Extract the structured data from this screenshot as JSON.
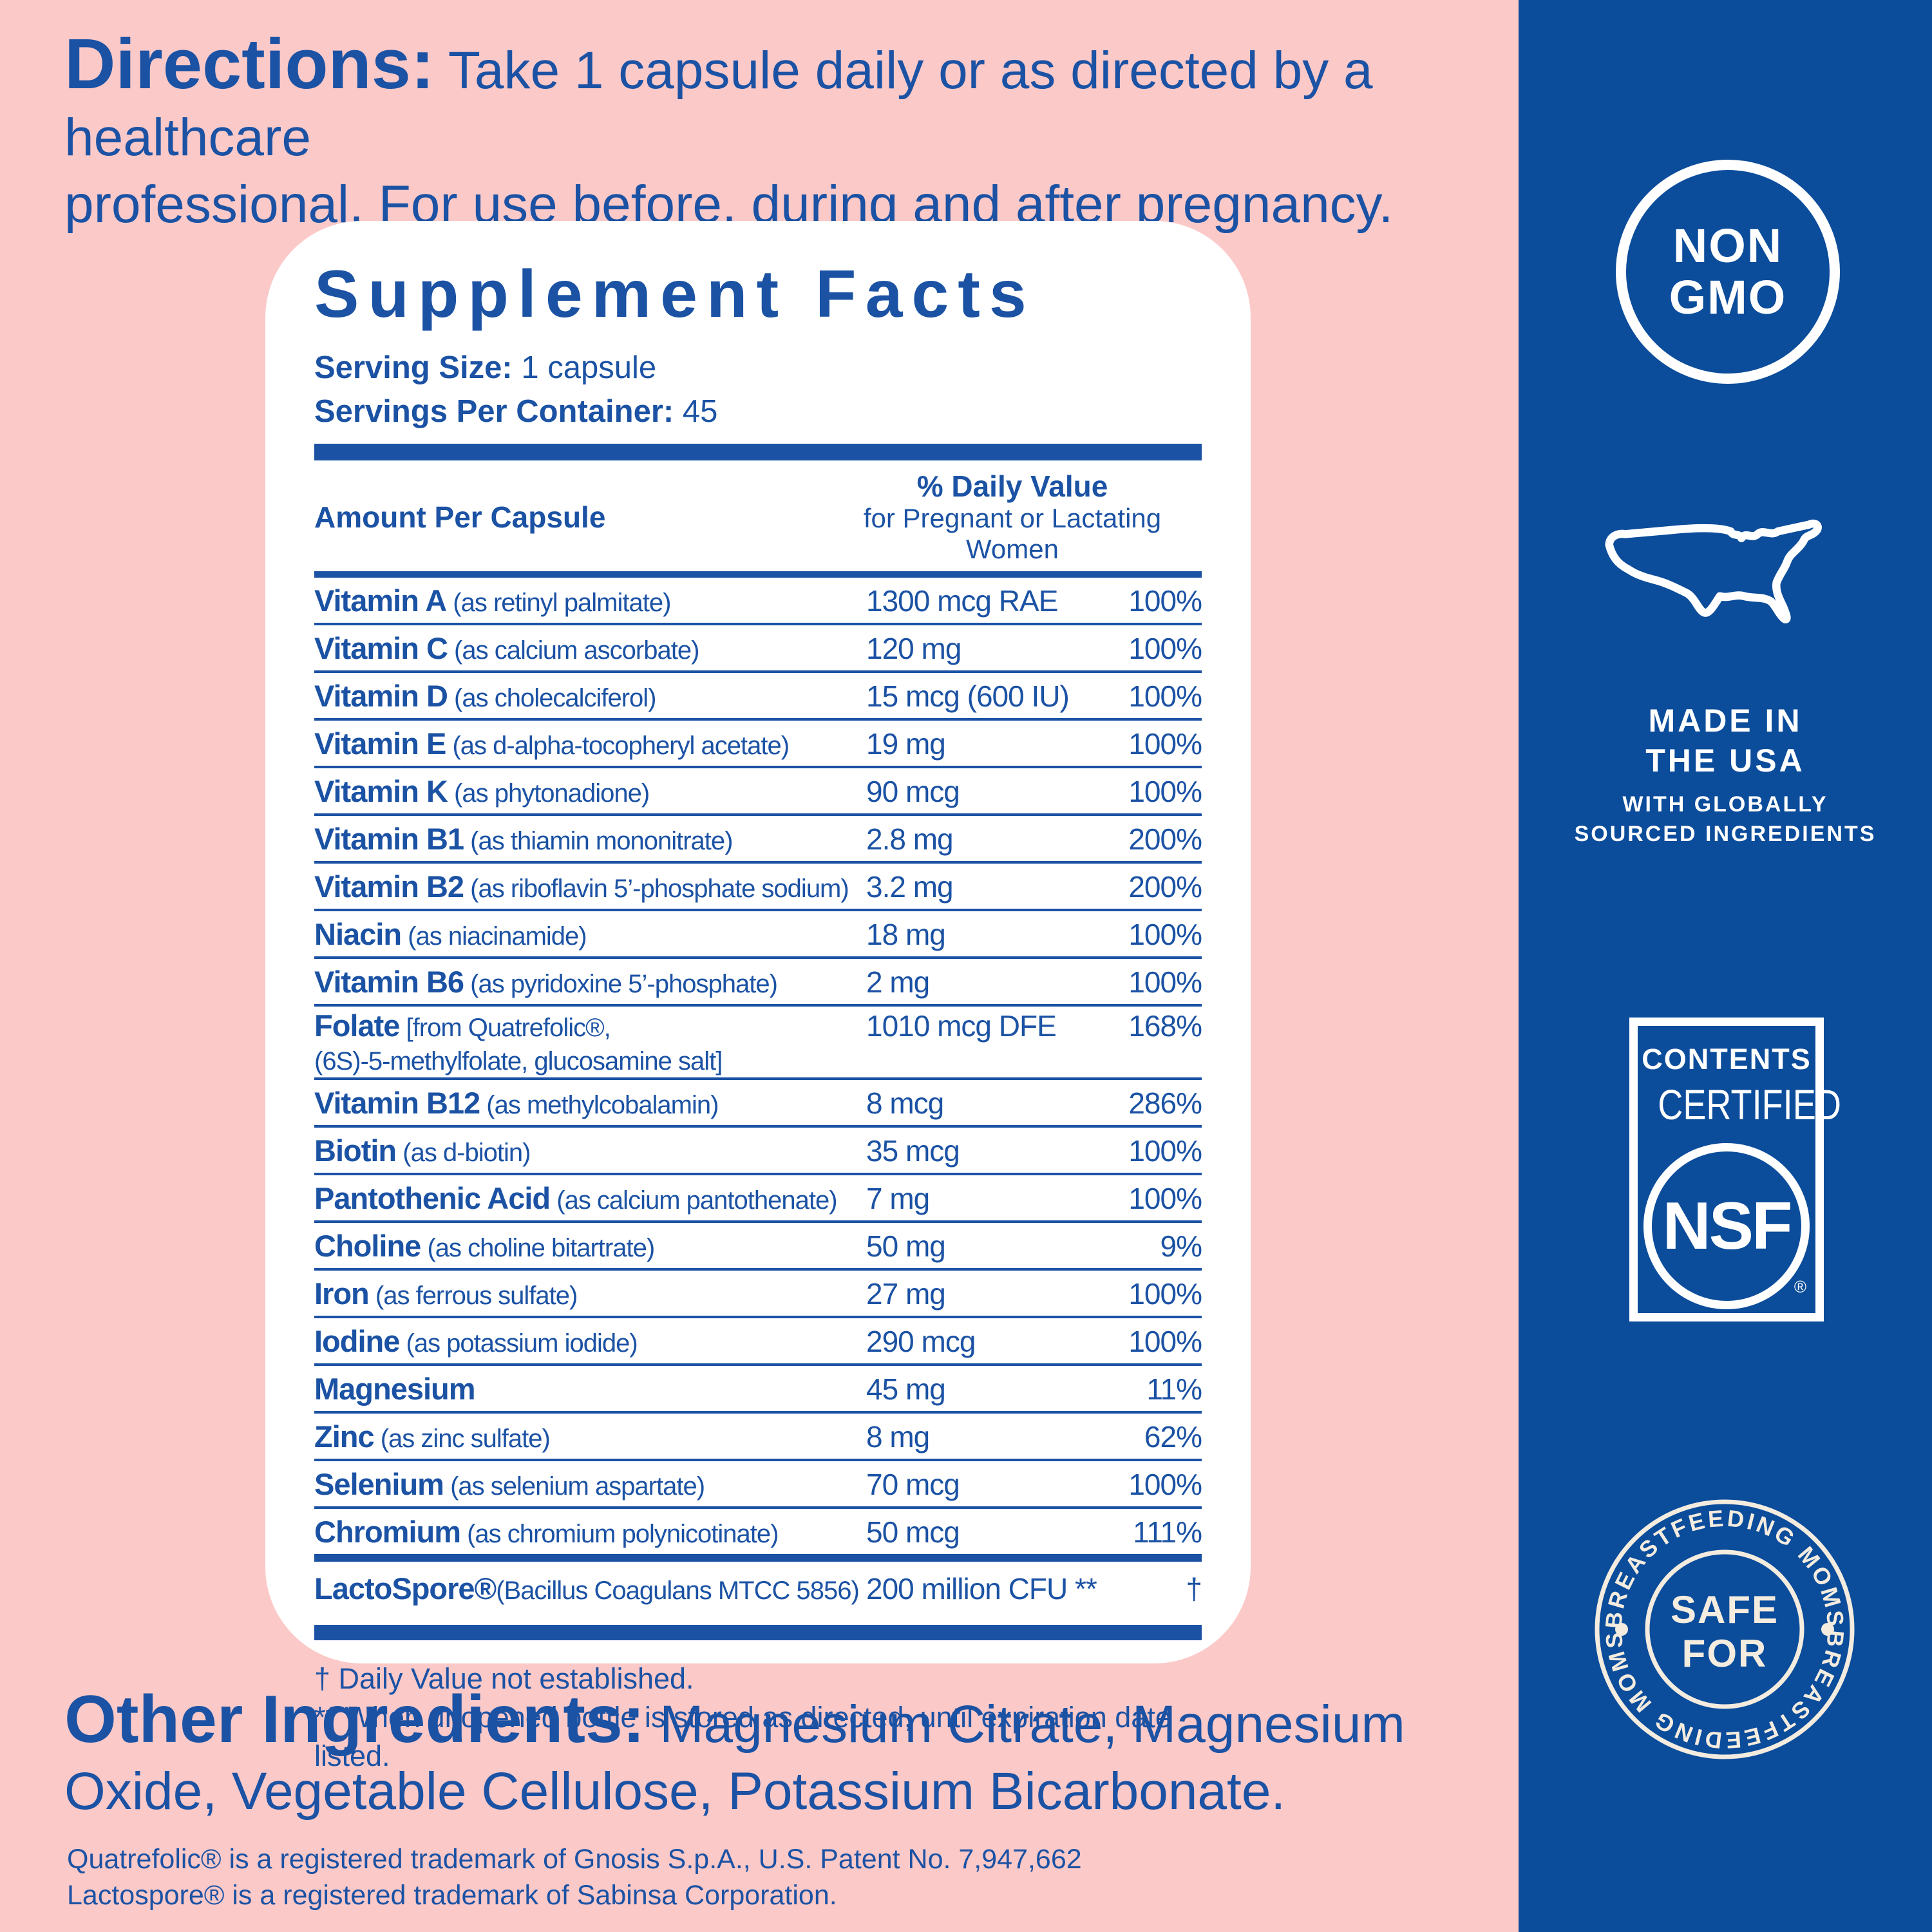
{
  "colors": {
    "pink": "#fbc9c8",
    "blue_sidebar": "#0b4c9b",
    "blue_text": "#1b52a4",
    "cream": "#f4ecdf"
  },
  "directions": {
    "heading": "Directions:",
    "line1": "Take 1 capsule daily or as directed by a healthcare",
    "line2": "professional. For use before, during and after pregnancy."
  },
  "panel": {
    "title": "Supplement Facts",
    "serving_size_label": "Serving Size:",
    "serving_size_value": "1 capsule",
    "servings_label": "Servings Per Container:",
    "servings_value": "45",
    "col_amount": "Amount Per Capsule",
    "col_dv": "% Daily Value",
    "col_dv_sub": "for Pregnant or Lactating Women",
    "rows": [
      {
        "name": "Vitamin A",
        "detail": " (as retinyl palmitate)",
        "amount": "1300 mcg RAE",
        "dv": "100%"
      },
      {
        "name": "Vitamin C",
        "detail": " (as calcium ascorbate)",
        "amount": "120 mg",
        "dv": "100%"
      },
      {
        "name": "Vitamin D",
        "detail": " (as cholecalciferol)",
        "amount": "15 mcg (600 IU)",
        "dv": "100%"
      },
      {
        "name": "Vitamin E",
        "detail": " (as d-alpha-tocopheryl acetate)",
        "amount": "19 mg",
        "dv": "100%"
      },
      {
        "name": "Vitamin K",
        "detail": " (as phytonadione)",
        "amount": "90 mcg",
        "dv": "100%"
      },
      {
        "name": "Vitamin B1",
        "detail": " (as thiamin mononitrate)",
        "amount": "2.8 mg",
        "dv": "200%"
      },
      {
        "name": "Vitamin B2",
        "detail": " (as riboflavin 5’-phosphate sodium)",
        "amount": "3.2 mg",
        "dv": "200%"
      },
      {
        "name": "Niacin",
        "detail": " (as niacinamide)",
        "amount": "18 mg",
        "dv": "100%"
      },
      {
        "name": "Vitamin B6",
        "detail": " (as pyridoxine 5’-phosphate)",
        "amount": "2 mg",
        "dv": "100%"
      },
      {
        "name": "Folate",
        "detail": " [from Quatrefolic®,",
        "detail2": "(6S)-5-methylfolate, glucosamine salt]",
        "amount": "1010 mcg DFE",
        "dv": "168%"
      },
      {
        "name": "Vitamin B12",
        "detail": " (as methylcobalamin)",
        "amount": "8 mcg",
        "dv": "286%"
      },
      {
        "name": "Biotin",
        "detail": " (as d-biotin)",
        "amount": "35 mcg",
        "dv": "100%"
      },
      {
        "name": "Pantothenic Acid",
        "detail": " (as calcium pantothenate)",
        "amount": "7 mg",
        "dv": "100%"
      },
      {
        "name": "Choline",
        "detail": " (as choline bitartrate)",
        "amount": "50 mg",
        "dv": "9%"
      },
      {
        "name": "Iron",
        "detail": " (as ferrous sulfate)",
        "amount": "27 mg",
        "dv": "100%"
      },
      {
        "name": "Iodine",
        "detail": " (as potassium iodide)",
        "amount": "290 mcg",
        "dv": "100%"
      },
      {
        "name": "Magnesium",
        "detail": "",
        "amount": "45 mg",
        "dv": "11%"
      },
      {
        "name": "Zinc",
        "detail": " (as zinc sulfate)",
        "amount": "8 mg",
        "dv": "62%"
      },
      {
        "name": "Selenium",
        "detail": " (as selenium aspartate)",
        "amount": "70 mcg",
        "dv": "100%"
      },
      {
        "name": "Chromium",
        "detail": " (as chromium polynicotinate)",
        "amount": "50 mcg",
        "dv": "111%"
      },
      {
        "name": "LactoSpore®",
        "detail": "(Bacillus Coagulans MTCC 5856)",
        "amount": "200 million CFU **",
        "dv": "†",
        "style": "lactospore"
      }
    ],
    "footnote1": "† Daily Value not established.",
    "footnote2": "** When unopened bottle is stored as directed, until expiration date listed."
  },
  "other_ingredients": {
    "heading": "Other Ingredients:",
    "line1": "Magnesium Citrate, Magnesium",
    "line2": "Oxide, Vegetable Cellulose, Potassium Bicarbonate."
  },
  "trademarks": {
    "line1": "Quatrefolic® is a registered trademark of Gnosis S.p.A., U.S. Patent No. 7,947,662",
    "line2": "Lactospore® is a registered trademark of Sabinsa Corporation."
  },
  "sidebar": {
    "non_gmo": {
      "line1": "NON",
      "line2": "GMO"
    },
    "made_in_usa": {
      "line1": "MADE IN",
      "line2": "THE USA",
      "line3": "WITH GLOBALLY",
      "line4": "SOURCED INGREDIENTS"
    },
    "nsf": {
      "line1": "CONTENTS",
      "line2": "CERTIFIED",
      "mark": "NSF",
      "reg": "®"
    },
    "safe_badge": {
      "arc_top": "BREASTFEEDING MOMS",
      "arc_bottom": "BREASTFEEDING MOMS",
      "center1": "SAFE",
      "center2": "FOR"
    }
  }
}
